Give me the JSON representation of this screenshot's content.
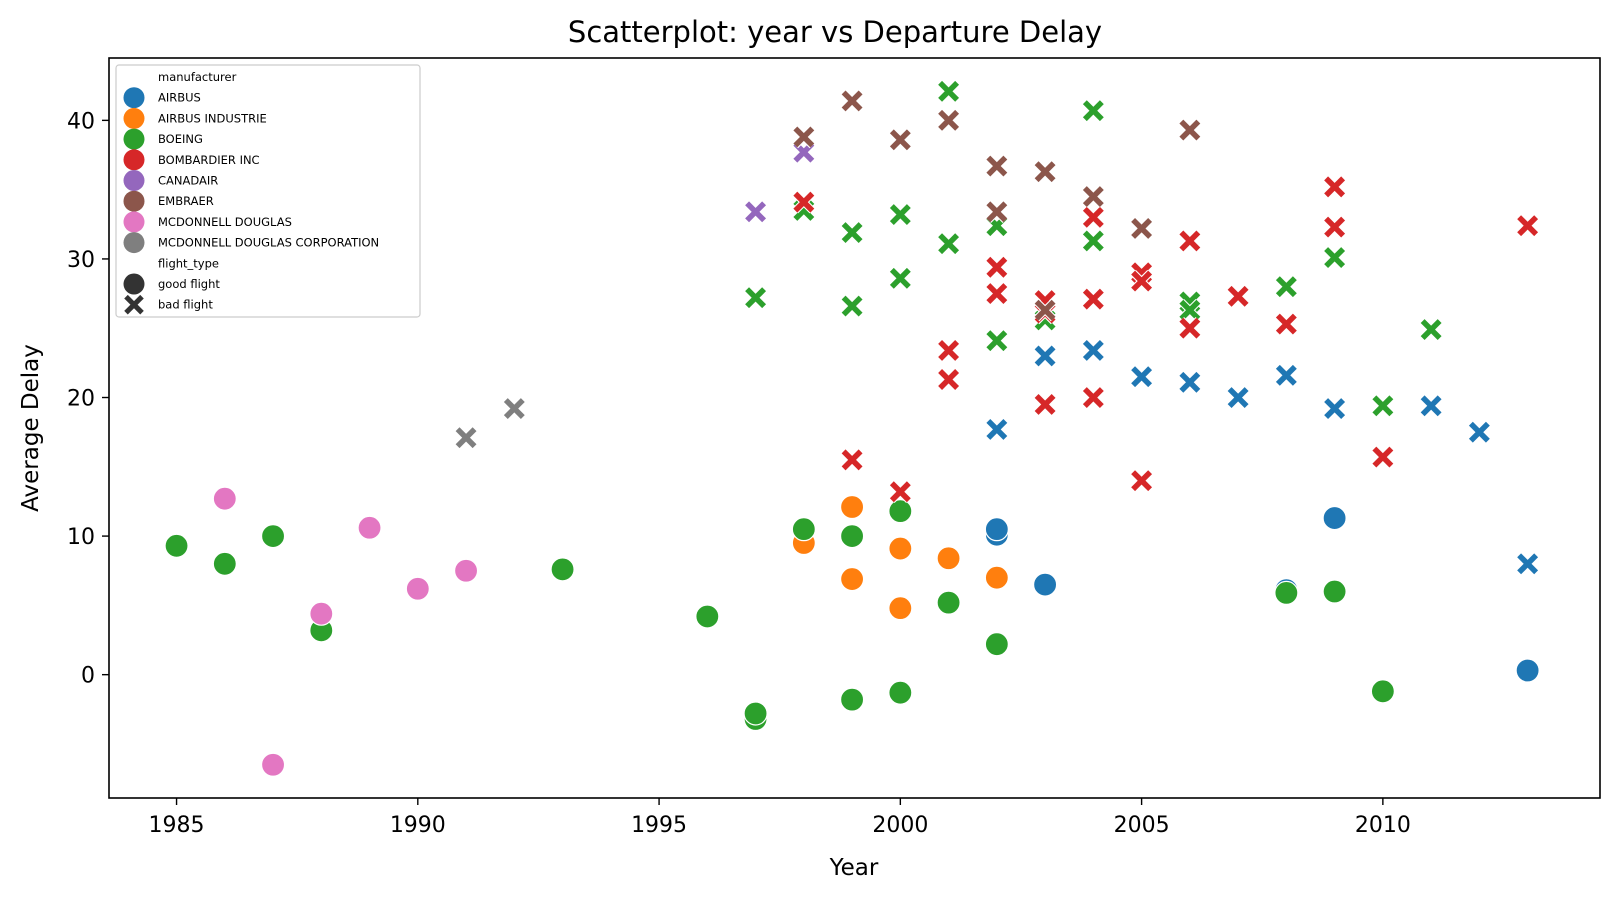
{
  "chart_data": {
    "type": "scatter",
    "title": "Scatterplot: year vs Departure Delay",
    "xlabel": "Year",
    "ylabel": "Average Delay",
    "xlim": [
      1983.6,
      2014.5
    ],
    "ylim": [
      -8.9,
      44.5
    ],
    "xticks": [
      1985,
      1990,
      1995,
      2000,
      2005,
      2010
    ],
    "yticks": [
      0,
      10,
      20,
      30,
      40
    ],
    "grid": false,
    "legend": {
      "placement": "top-left",
      "hue_title": "manufacturer",
      "style_title": "flight_type",
      "style_entries": [
        {
          "label": "good flight",
          "marker": "circle"
        },
        {
          "label": "bad flight",
          "marker": "x"
        }
      ]
    },
    "series": [
      {
        "name": "AIRBUS",
        "color": "#1f77b4",
        "good": [
          [
            2002,
            10.1
          ],
          [
            2002,
            10.5
          ],
          [
            2003,
            6.5
          ],
          [
            2008,
            6.1
          ],
          [
            2009,
            11.3
          ],
          [
            2013,
            0.3
          ]
        ],
        "bad": [
          [
            2002,
            17.7
          ],
          [
            2003,
            23.0
          ],
          [
            2004,
            23.4
          ],
          [
            2005,
            21.5
          ],
          [
            2006,
            21.1
          ],
          [
            2007,
            20.0
          ],
          [
            2008,
            21.6
          ],
          [
            2009,
            19.2
          ],
          [
            2011,
            19.4
          ],
          [
            2012,
            17.5
          ],
          [
            2013,
            8.0
          ]
        ]
      },
      {
        "name": "AIRBUS INDUSTRIE",
        "color": "#ff7f0e",
        "good": [
          [
            1998,
            9.5
          ],
          [
            1999,
            12.1
          ],
          [
            1999,
            6.9
          ],
          [
            2000,
            9.1
          ],
          [
            2000,
            4.8
          ],
          [
            2001,
            8.4
          ],
          [
            2002,
            7.0
          ]
        ],
        "bad": []
      },
      {
        "name": "BOEING",
        "color": "#2ca02c",
        "good": [
          [
            1985,
            9.3
          ],
          [
            1986,
            8.0
          ],
          [
            1987,
            10.0
          ],
          [
            1988,
            3.2
          ],
          [
            1993,
            7.6
          ],
          [
            1996,
            4.2
          ],
          [
            1997,
            -3.2
          ],
          [
            1997,
            -2.8
          ],
          [
            1998,
            10.5
          ],
          [
            1999,
            10.0
          ],
          [
            1999,
            -1.8
          ],
          [
            2000,
            11.8
          ],
          [
            2000,
            -1.3
          ],
          [
            2001,
            5.2
          ],
          [
            2002,
            2.2
          ],
          [
            2008,
            5.9
          ],
          [
            2009,
            6.0
          ],
          [
            2010,
            -1.2
          ]
        ],
        "bad": [
          [
            1997,
            27.2
          ],
          [
            1998,
            33.5
          ],
          [
            1999,
            31.9
          ],
          [
            1999,
            26.6
          ],
          [
            2000,
            33.2
          ],
          [
            2000,
            28.6
          ],
          [
            2001,
            42.1
          ],
          [
            2001,
            31.1
          ],
          [
            2002,
            32.4
          ],
          [
            2002,
            24.1
          ],
          [
            2003,
            25.6
          ],
          [
            2004,
            40.7
          ],
          [
            2004,
            31.3
          ],
          [
            2006,
            26.9
          ],
          [
            2006,
            26.3
          ],
          [
            2008,
            28.0
          ],
          [
            2009,
            30.1
          ],
          [
            2010,
            19.4
          ],
          [
            2011,
            24.9
          ]
        ]
      },
      {
        "name": "BOMBARDIER INC",
        "color": "#d62728",
        "good": [],
        "bad": [
          [
            1998,
            34.1
          ],
          [
            1999,
            15.5
          ],
          [
            2000,
            13.2
          ],
          [
            2001,
            23.4
          ],
          [
            2001,
            21.3
          ],
          [
            2002,
            29.4
          ],
          [
            2002,
            27.5
          ],
          [
            2003,
            27.0
          ],
          [
            2003,
            26.1
          ],
          [
            2003,
            19.5
          ],
          [
            2004,
            33.0
          ],
          [
            2004,
            27.1
          ],
          [
            2004,
            20.0
          ],
          [
            2005,
            29.0
          ],
          [
            2005,
            28.4
          ],
          [
            2005,
            14.0
          ],
          [
            2006,
            31.3
          ],
          [
            2006,
            25.0
          ],
          [
            2007,
            27.3
          ],
          [
            2008,
            25.3
          ],
          [
            2009,
            35.2
          ],
          [
            2009,
            32.3
          ],
          [
            2010,
            15.7
          ],
          [
            2013,
            32.4
          ]
        ]
      },
      {
        "name": "CANADAIR",
        "color": "#9467bd",
        "good": [],
        "bad": [
          [
            1997,
            33.4
          ],
          [
            1998,
            37.7
          ]
        ]
      },
      {
        "name": "EMBRAER",
        "color": "#8c564b",
        "good": [],
        "bad": [
          [
            1998,
            38.8
          ],
          [
            1999,
            41.4
          ],
          [
            2000,
            38.6
          ],
          [
            2001,
            40.0
          ],
          [
            2002,
            36.7
          ],
          [
            2002,
            33.4
          ],
          [
            2003,
            36.3
          ],
          [
            2003,
            26.3
          ],
          [
            2004,
            34.5
          ],
          [
            2005,
            32.2
          ],
          [
            2006,
            39.3
          ]
        ]
      },
      {
        "name": "MCDONNELL DOUGLAS",
        "color": "#e377c2",
        "good": [
          [
            1986,
            12.7
          ],
          [
            1987,
            -6.5
          ],
          [
            1988,
            4.4
          ],
          [
            1989,
            10.6
          ],
          [
            1990,
            6.2
          ],
          [
            1991,
            7.5
          ]
        ],
        "bad": []
      },
      {
        "name": "MCDONNELL DOUGLAS CORPORATION",
        "color": "#7f7f7f",
        "good": [],
        "bad": [
          [
            1991,
            17.1
          ],
          [
            1992,
            19.2
          ]
        ]
      }
    ]
  }
}
